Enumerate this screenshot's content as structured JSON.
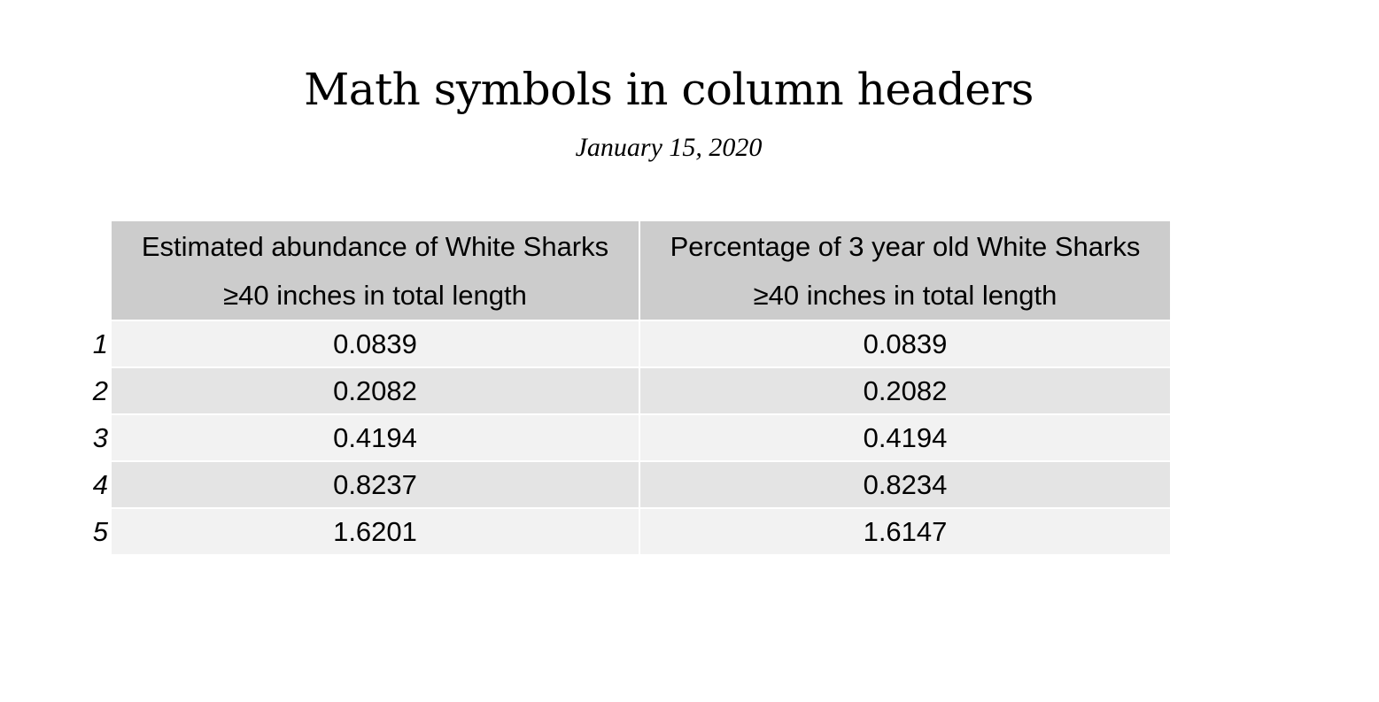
{
  "title": "Math symbols in column headers",
  "date": "January 15, 2020",
  "table": {
    "columns": [
      {
        "line1": "Estimated abundance of White Sharks",
        "line2": "≥40 inches in total length"
      },
      {
        "line1": "Percentage of 3 year old White Sharks",
        "line2": "≥40 inches in total length"
      }
    ],
    "rows": [
      {
        "index": "1",
        "values": [
          "0.0839",
          "0.0839"
        ]
      },
      {
        "index": "2",
        "values": [
          "0.2082",
          "0.2082"
        ]
      },
      {
        "index": "3",
        "values": [
          "0.4194",
          "0.4194"
        ]
      },
      {
        "index": "4",
        "values": [
          "0.8237",
          "0.8234"
        ]
      },
      {
        "index": "5",
        "values": [
          "1.6201",
          "1.6147"
        ]
      }
    ]
  },
  "colors": {
    "header_bg": "#cccccc",
    "row_odd": "#f2f2f2",
    "row_even": "#e4e4e4"
  }
}
